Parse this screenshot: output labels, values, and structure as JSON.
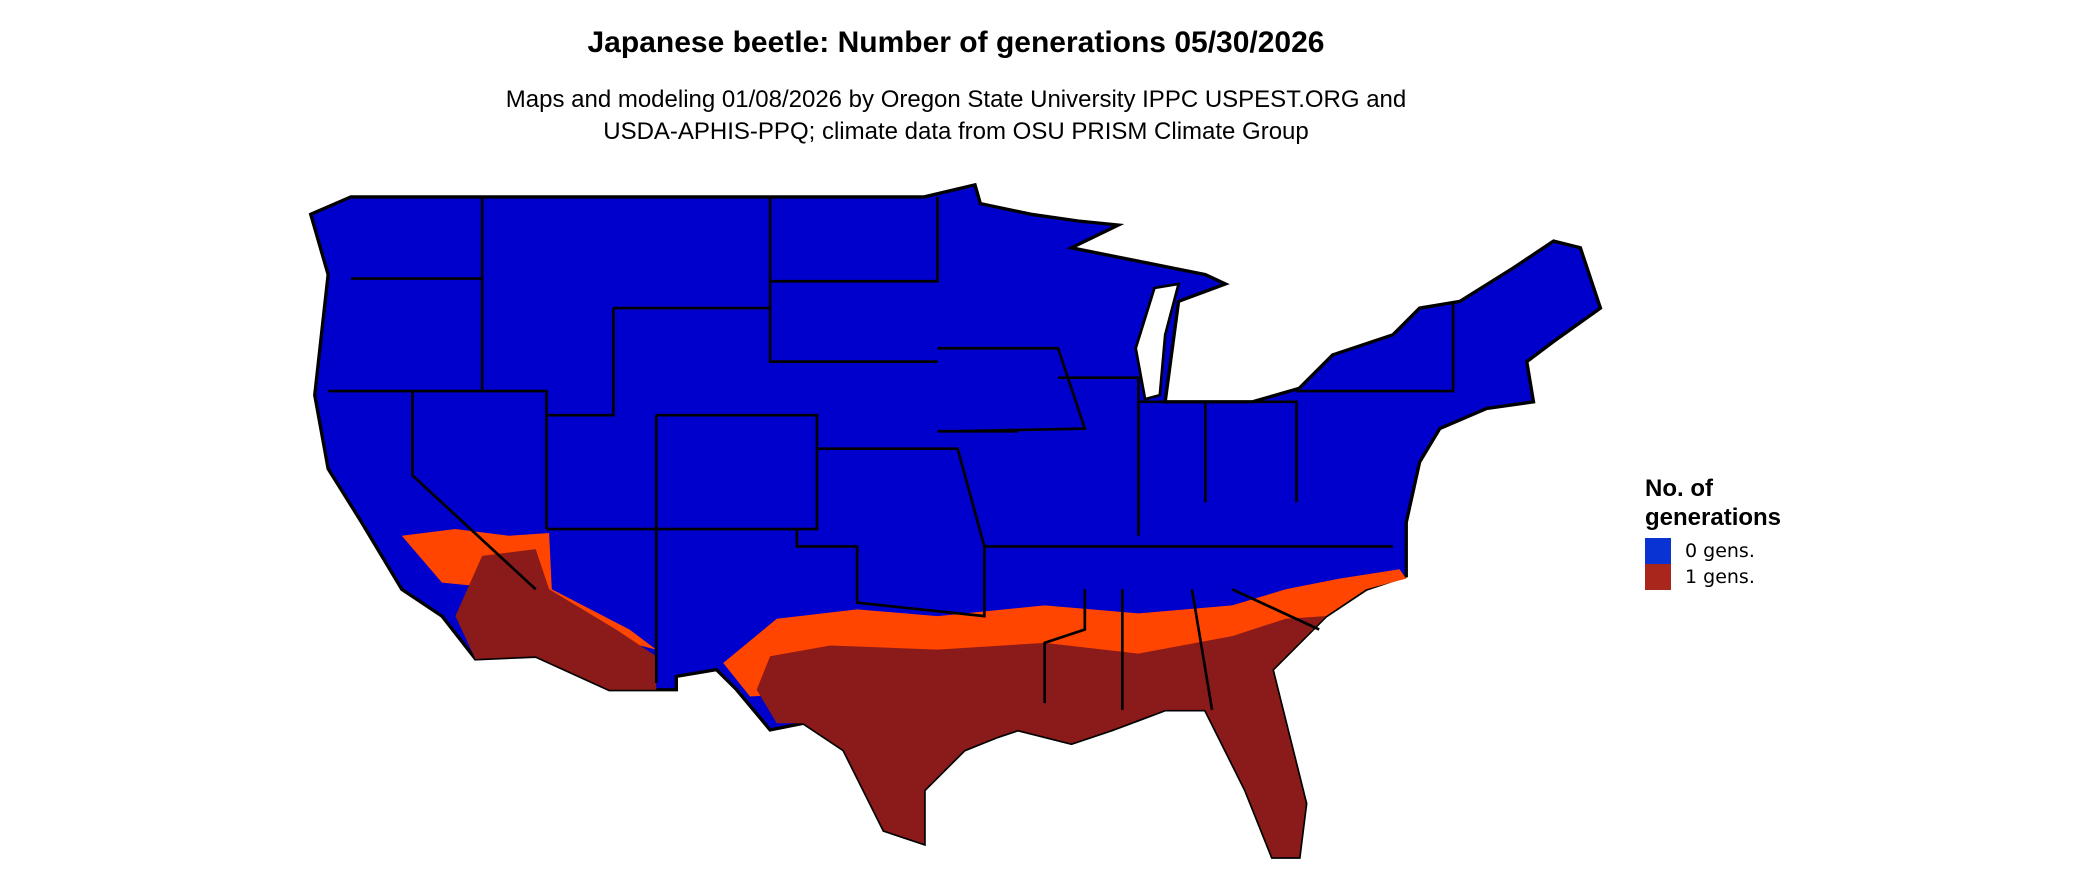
{
  "title": "Japanese beetle: Number of generations 05/30/2026",
  "subtitle_lines": [
    "Maps and modeling 01/08/2026 by Oregon State University IPPC USPEST.ORG and",
    "USDA-APHIS-PPQ; climate data from OSU PRISM Climate Group"
  ],
  "map": {
    "region": "Contiguous United States",
    "colors": {
      "zero_gens": "#0000CC",
      "one_gen": "#8B1A1A",
      "transition": "#FF4500",
      "borders": "#000000"
    }
  },
  "legend": {
    "title_lines": [
      "No. of",
      "generations"
    ],
    "items": [
      {
        "label": "0 gens.",
        "color": "#0A33D4"
      },
      {
        "label": "1 gens.",
        "color": "#A8261B"
      }
    ]
  }
}
